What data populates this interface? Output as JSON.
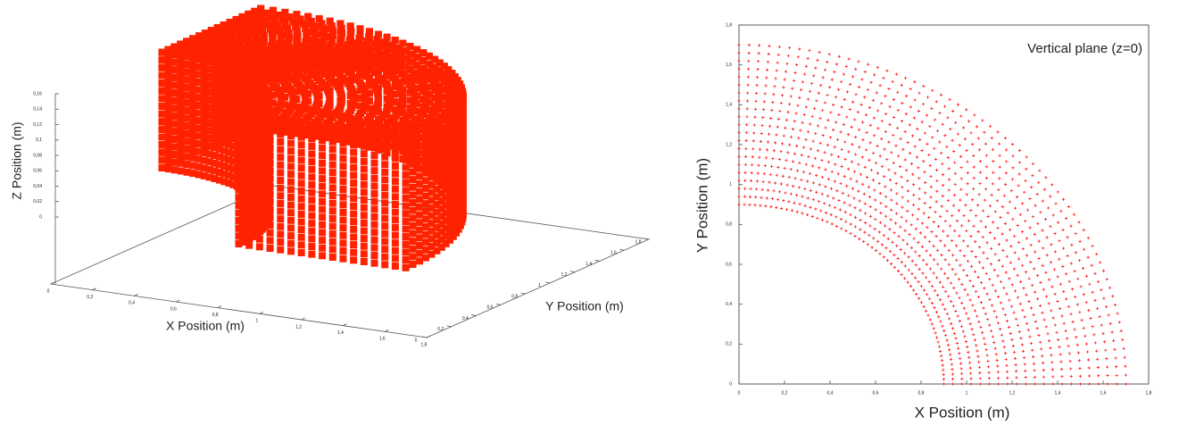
{
  "chart_data": [
    {
      "type": "scatter3d",
      "xlabel": "X Position (m)",
      "ylabel": "Y Position (m)",
      "zlabel": "Z Position (m)",
      "color": "#ff2200",
      "radii": [
        0.9,
        0.95,
        1.0,
        1.05,
        1.1,
        1.15,
        1.2,
        1.25,
        1.3,
        1.35,
        1.4,
        1.45,
        1.5,
        1.55,
        1.6,
        1.65,
        1.7
      ],
      "angles": [
        0,
        2,
        4,
        6,
        8,
        10,
        12,
        14,
        16,
        18,
        20,
        22,
        24,
        26,
        28,
        30,
        32,
        34,
        36,
        38,
        40,
        42,
        44,
        46,
        48,
        50,
        52,
        54,
        56,
        58,
        60,
        62,
        64,
        66,
        68,
        70,
        72,
        74,
        76,
        78,
        80,
        82,
        84,
        86,
        88,
        90
      ],
      "z_levels": [
        0,
        0.01,
        0.02,
        0.03,
        0.04,
        0.05,
        0.06,
        0.07,
        0.08,
        0.09,
        0.1,
        0.11,
        0.12,
        0.13,
        0.14,
        0.15
      ],
      "xlim": [
        0,
        1.8
      ],
      "ylim": [
        0,
        1.8
      ],
      "zlim": [
        0,
        0.16
      ],
      "xticks": [
        0,
        {
          "value": 0.2,
          "label": "0,2"
        },
        {
          "value": 0.4,
          "label": "0,4"
        },
        {
          "value": 0.6,
          "label": "0,6"
        },
        {
          "value": 0.8,
          "label": "0,8"
        },
        1,
        {
          "value": 1.2,
          "label": "1,2"
        },
        {
          "value": 1.4,
          "label": "1,4"
        },
        {
          "value": 1.6,
          "label": "1,6"
        },
        {
          "value": 1.8,
          "label": "1,8"
        }
      ],
      "yticks": [
        0,
        {
          "value": 0.2,
          "label": "0,2"
        },
        {
          "value": 0.4,
          "label": "0,4"
        },
        {
          "value": 0.6,
          "label": "0,6"
        },
        {
          "value": 0.8,
          "label": "0,8"
        },
        1,
        {
          "value": 1.2,
          "label": "1,2"
        },
        {
          "value": 1.4,
          "label": "1,4"
        },
        {
          "value": 1.6,
          "label": "1,6"
        },
        {
          "value": 1.8,
          "label": "1,8"
        }
      ],
      "zticks": [
        0,
        {
          "value": 0.02,
          "label": "0,02"
        },
        {
          "value": 0.04,
          "label": "0,04"
        },
        {
          "value": 0.06,
          "label": "0,06"
        },
        {
          "value": 0.08,
          "label": "0,08"
        },
        {
          "value": 0.1,
          "label": "0,1"
        },
        {
          "value": 0.12,
          "label": "0,12"
        },
        {
          "value": 0.14,
          "label": "0,14"
        },
        {
          "value": 0.16,
          "label": "0,16"
        }
      ]
    },
    {
      "type": "polar-scatter",
      "annotation": "Vertical plane (z=0)",
      "xlabel": "X Position (m)",
      "ylabel": "Y Position (m)",
      "color": "#ff0000",
      "radii": [
        0.9,
        0.94,
        0.98,
        1.02,
        1.06,
        1.1,
        1.14,
        1.18,
        1.22,
        1.26,
        1.3,
        1.34,
        1.38,
        1.42,
        1.46,
        1.5,
        1.54,
        1.58,
        1.62,
        1.66,
        1.7
      ],
      "angles": [
        0,
        1.5,
        3,
        4.5,
        6,
        7.5,
        9,
        10.5,
        12,
        13.5,
        15,
        16.5,
        18,
        19.5,
        21,
        22.5,
        24,
        25.5,
        27,
        28.5,
        30,
        31.5,
        33,
        34.5,
        36,
        37.5,
        39,
        40.5,
        42,
        43.5,
        45,
        46.5,
        48,
        49.5,
        51,
        52.5,
        54,
        55.5,
        57,
        58.5,
        60,
        61.5,
        63,
        64.5,
        66,
        67.5,
        69,
        70.5,
        72,
        73.5,
        75,
        76.5,
        78,
        79.5,
        81,
        82.5,
        84,
        85.5,
        87,
        88.5,
        90
      ],
      "xlim": [
        0,
        1.8
      ],
      "ylim": [
        0,
        1.8
      ],
      "xticks": [
        0,
        {
          "value": 0.2,
          "label": "0,2"
        },
        {
          "value": 0.4,
          "label": "0,4"
        },
        {
          "value": 0.6,
          "label": "0,6"
        },
        {
          "value": 0.8,
          "label": "0,8"
        },
        1,
        {
          "value": 1.2,
          "label": "1,2"
        },
        {
          "value": 1.4,
          "label": "1,4"
        },
        {
          "value": 1.6,
          "label": "1,6"
        },
        {
          "value": 1.8,
          "label": "1,8"
        }
      ],
      "yticks": [
        0,
        {
          "value": 0.2,
          "label": "0,2"
        },
        {
          "value": 0.4,
          "label": "0,4"
        },
        {
          "value": 0.6,
          "label": "0,6"
        },
        {
          "value": 0.8,
          "label": "0,8"
        },
        1,
        {
          "value": 1.2,
          "label": "1,2"
        },
        {
          "value": 1.4,
          "label": "1,4"
        },
        {
          "value": 1.6,
          "label": "1,6"
        },
        {
          "value": 1.8,
          "label": "1,8"
        }
      ]
    }
  ]
}
